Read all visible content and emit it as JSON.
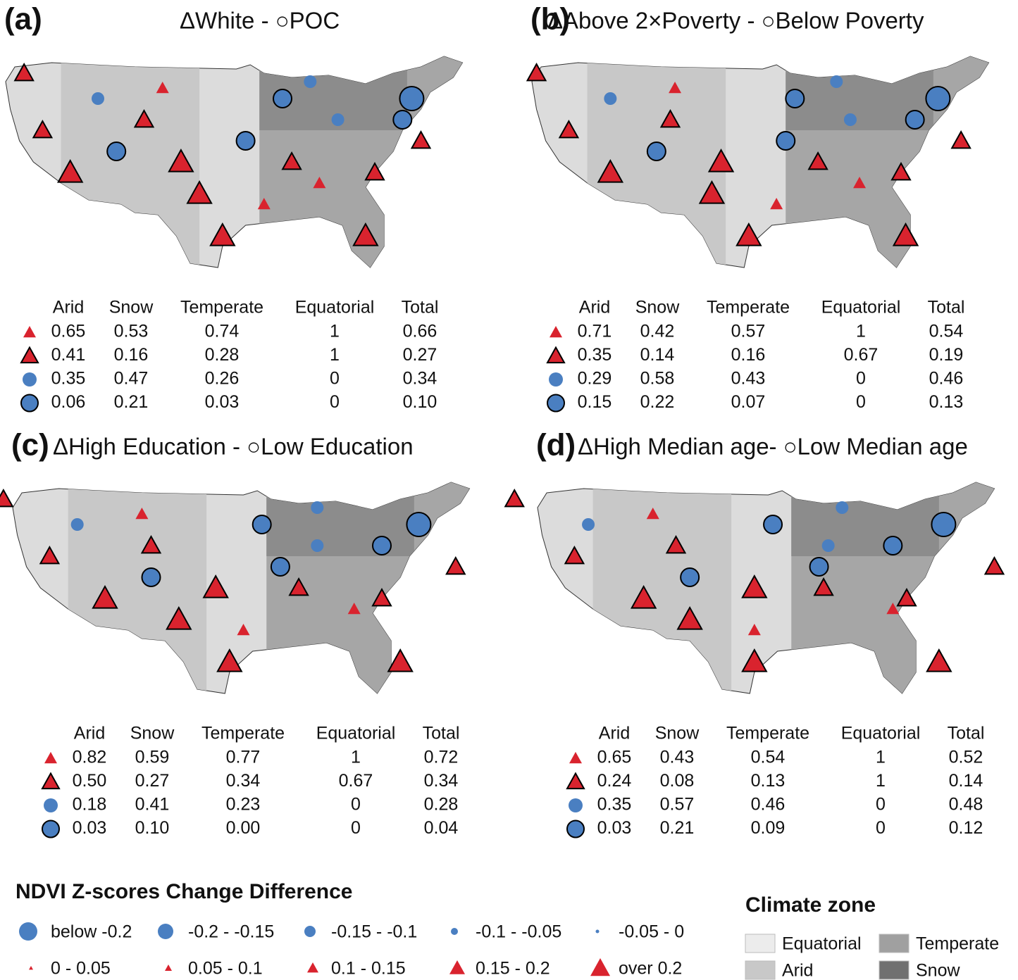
{
  "panels": [
    {
      "label": "(a)",
      "title": "ΔWhite - ○POC",
      "table": {
        "header": [
          "Arid",
          "Snow",
          "Temperate",
          "Equatorial",
          "Total"
        ],
        "rows": [
          [
            "0.65",
            "0.53",
            "0.74",
            "1",
            "0.66"
          ],
          [
            "0.41",
            "0.16",
            "0.28",
            "1",
            "0.27"
          ],
          [
            "0.35",
            "0.47",
            "0.26",
            "0",
            "0.34"
          ],
          [
            "0.06",
            "0.21",
            "0.03",
            "0",
            "0.10"
          ]
        ]
      }
    },
    {
      "label": "(b)",
      "title": "ΔAbove 2×Poverty - ○Below Poverty",
      "table": {
        "header": [
          "Arid",
          "Snow",
          "Temperate",
          "Equatorial",
          "Total"
        ],
        "rows": [
          [
            "0.71",
            "0.42",
            "0.57",
            "1",
            "0.54"
          ],
          [
            "0.35",
            "0.14",
            "0.16",
            "0.67",
            "0.19"
          ],
          [
            "0.29",
            "0.58",
            "0.43",
            "0",
            "0.46"
          ],
          [
            "0.15",
            "0.22",
            "0.07",
            "0",
            "0.13"
          ]
        ]
      }
    },
    {
      "label": "(c)",
      "title": "ΔHigh Education - ○Low Education",
      "table": {
        "header": [
          "Arid",
          "Snow",
          "Temperate",
          "Equatorial",
          "Total"
        ],
        "rows": [
          [
            "0.82",
            "0.59",
            "0.77",
            "1",
            "0.72"
          ],
          [
            "0.50",
            "0.27",
            "0.34",
            "0.67",
            "0.34"
          ],
          [
            "0.18",
            "0.41",
            "0.23",
            "0",
            "0.28"
          ],
          [
            "0.03",
            "0.10",
            "0.00",
            "0",
            "0.04"
          ]
        ]
      }
    },
    {
      "label": "(d)",
      "title": "ΔHigh Median age- ○Low Median age",
      "table": {
        "header": [
          "Arid",
          "Snow",
          "Temperate",
          "Equatorial",
          "Total"
        ],
        "rows": [
          [
            "0.65",
            "0.43",
            "0.54",
            "1",
            "0.52"
          ],
          [
            "0.24",
            "0.08",
            "0.13",
            "1",
            "0.14"
          ],
          [
            "0.35",
            "0.57",
            "0.46",
            "0",
            "0.48"
          ],
          [
            "0.03",
            "0.21",
            "0.09",
            "0",
            "0.12"
          ]
        ]
      }
    }
  ],
  "legend": {
    "title": "NDVI Z-scores Change Difference",
    "items": [
      "below -0.2",
      "-0.2 - -0.15",
      "-0.15 - -0.1",
      "-0.1 - -0.05",
      "-0.05 - 0",
      "0 - 0.05",
      "0.05 - 0.1",
      "0.1 - 0.15",
      "0.15 - 0.2",
      "over 0.2"
    ]
  },
  "climate_legend": {
    "title": "Climate zone",
    "items": [
      {
        "label": "Equatorial",
        "color": "#ececec"
      },
      {
        "label": "Temperate",
        "color": "#a0a0a0"
      },
      {
        "label": "Arid",
        "color": "#c8c8c8"
      },
      {
        "label": "Snow",
        "color": "#707070"
      }
    ]
  }
}
